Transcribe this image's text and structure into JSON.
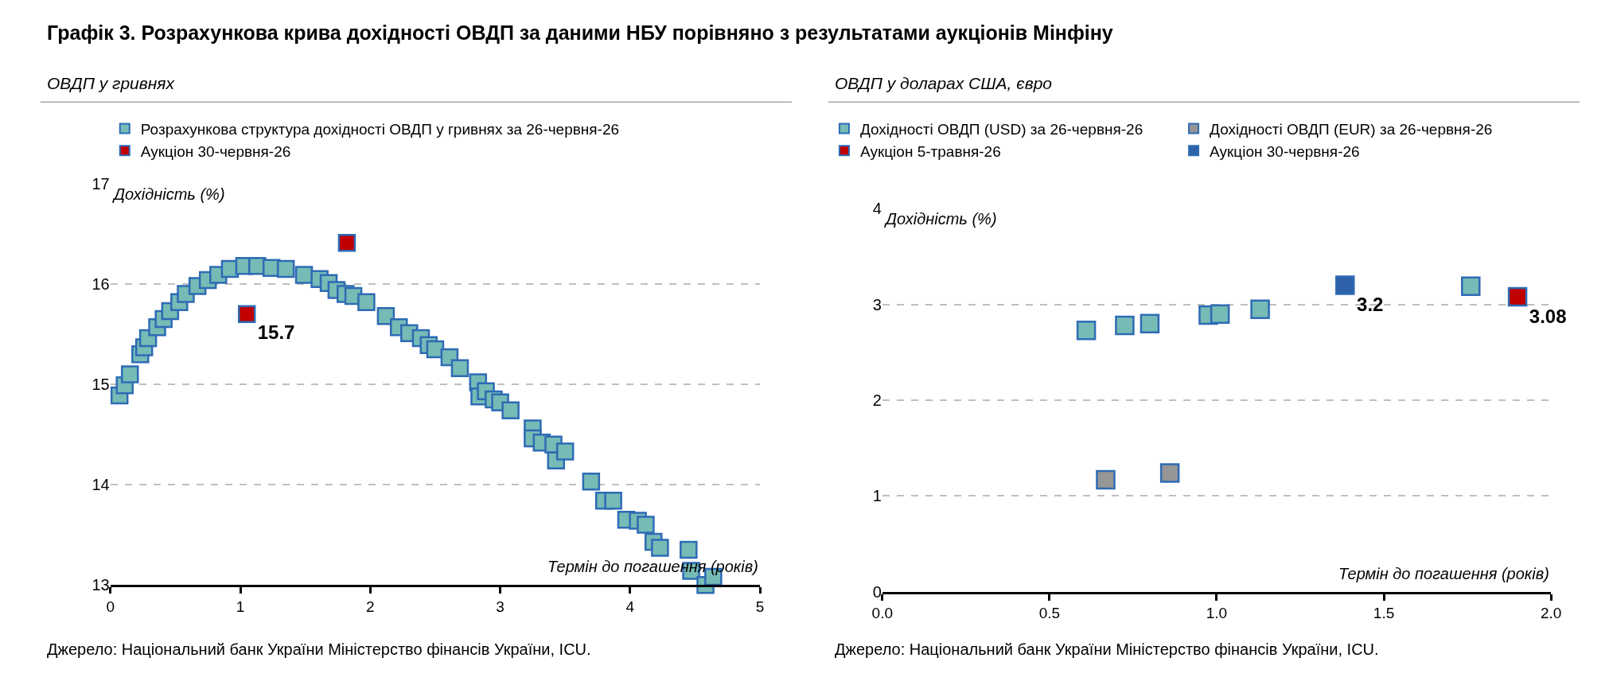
{
  "chart_data": [
    {
      "type": "scatter",
      "title": "Графік 3. Розрахункова крива дохідності ОВДП за даними НБУ порівняно з результатами аукціонів Мінфіну",
      "subtitle": "ОВДП у гривнях",
      "xlabel": "Термін до погашення (років)",
      "ylabel": "Дохідність (%)",
      "marker": "square",
      "grid": "y",
      "legend": "top",
      "xlim": [
        0,
        5
      ],
      "xticks": [
        0,
        1,
        2,
        3,
        4,
        5
      ],
      "ylim": [
        13,
        17
      ],
      "yticks": [
        13,
        14,
        15,
        16,
        17
      ],
      "series": [
        {
          "name": "Розрахункова структура дохідності ОВДП у гривнях за 26-червня-26",
          "color": "#76bbb5",
          "x": [
            0.07,
            0.11,
            0.15,
            0.23,
            0.26,
            0.29,
            0.36,
            0.41,
            0.46,
            0.53,
            0.58,
            0.67,
            0.75,
            0.83,
            0.92,
            1.03,
            1.13,
            1.24,
            1.35,
            1.49,
            1.61,
            1.68,
            1.74,
            1.81,
            1.87,
            1.97,
            2.12,
            2.22,
            2.3,
            2.39,
            2.45,
            2.5,
            2.61,
            2.69,
            2.83,
            2.84,
            2.89,
            2.95,
            3.0,
            3.08,
            3.25,
            3.25,
            3.32,
            3.41,
            3.43,
            3.5,
            3.7,
            3.8,
            3.87,
            3.97,
            4.06,
            4.12,
            4.18,
            4.23,
            4.45,
            4.47,
            4.58,
            4.64
          ],
          "values": [
            14.89,
            14.99,
            15.1,
            15.3,
            15.37,
            15.46,
            15.57,
            15.65,
            15.73,
            15.82,
            15.9,
            15.98,
            16.04,
            16.09,
            16.15,
            16.18,
            16.18,
            16.16,
            16.15,
            16.09,
            16.05,
            16.01,
            15.94,
            15.9,
            15.88,
            15.82,
            15.68,
            15.57,
            15.51,
            15.46,
            15.39,
            15.35,
            15.27,
            15.16,
            15.02,
            14.88,
            14.93,
            14.85,
            14.82,
            14.74,
            14.56,
            14.46,
            14.42,
            14.4,
            14.24,
            14.33,
            14.03,
            13.84,
            13.84,
            13.65,
            13.64,
            13.6,
            13.43,
            13.37,
            13.35,
            13.14,
            13.0,
            13.08
          ]
        },
        {
          "name": "Аукціон 30-червня-26",
          "color": "#c00000",
          "x": [
            1.05,
            1.82
          ],
          "values": [
            15.7,
            16.41
          ],
          "value_labels": [
            "15.7",
            null
          ]
        }
      ],
      "annotations": [
        "Джерело: Національний банк України Міністерство фінансів України, ICU."
      ]
    },
    {
      "type": "scatter",
      "subtitle": "ОВДП у доларах США, євро",
      "xlabel": "Термін до погашення (років)",
      "ylabel": "Дохідність (%)",
      "marker": "square",
      "grid": "y",
      "legend": "top",
      "xlim": [
        0,
        2
      ],
      "xticks": [
        {
          "value": 0,
          "label": "0.0"
        },
        {
          "value": 0.5,
          "label": "0.5"
        },
        {
          "value": 1,
          "label": "1.0"
        },
        {
          "value": 1.5,
          "label": "1.5"
        },
        {
          "value": 2,
          "label": "2.0"
        }
      ],
      "ylim": [
        0,
        4
      ],
      "yticks": [
        0,
        1,
        2,
        3,
        4
      ],
      "series": [
        {
          "name": "Дохідності ОВДП (USD) за 26-червня-26",
          "color": "#76bbb5",
          "x": [
            0.61,
            0.725,
            0.8,
            0.975,
            1.01,
            1.13,
            1.76
          ],
          "values": [
            2.73,
            2.78,
            2.8,
            2.89,
            2.9,
            2.95,
            3.19
          ]
        },
        {
          "name": "Дохідності ОВДП (EUR) за 26-червня-26",
          "color": "#969696",
          "x": [
            0.668,
            0.86
          ],
          "values": [
            1.17,
            1.24
          ]
        },
        {
          "name": "Аукціон 5-травня-26",
          "color": "#c00000",
          "x": [
            1.9
          ],
          "values": [
            3.08
          ],
          "value_labels": [
            "3.08"
          ]
        },
        {
          "name": "Аукціон 30-червня-26",
          "color": "#2e62a8",
          "x": [
            1.384
          ],
          "values": [
            3.2
          ],
          "value_labels": [
            "3.2"
          ]
        }
      ],
      "annotations": [
        "Джерело: Національний банк України Міністерство фінансів України, ICU."
      ]
    }
  ]
}
